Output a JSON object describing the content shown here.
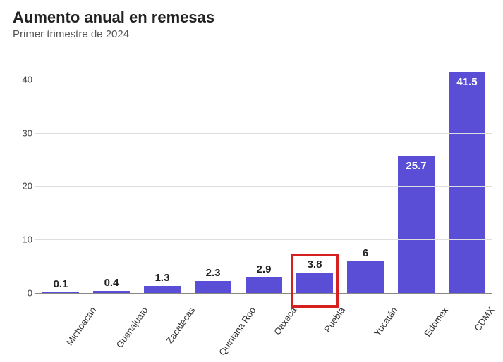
{
  "title": "Aumento anual en remesas",
  "subtitle": "Primer trimestre de 2024",
  "chart": {
    "type": "bar",
    "categories": [
      "Michoacán",
      "Guanajuato",
      "Zacatecas",
      "Quintana Roo",
      "Oaxaca",
      "Puebla",
      "Yucatán",
      "Edomex",
      "CDMX"
    ],
    "values": [
      0.1,
      0.4,
      1.3,
      2.3,
      2.9,
      3.8,
      6,
      25.7,
      41.5
    ],
    "value_labels": [
      "0.1",
      "0.4",
      "1.3",
      "2.3",
      "2.9",
      "3.8",
      "6",
      "25.7",
      "41.5"
    ],
    "label_inside": [
      false,
      false,
      false,
      false,
      false,
      false,
      false,
      true,
      true
    ],
    "bar_color": "#5b4ed6",
    "ylim": [
      0,
      45
    ],
    "yticks": [
      0,
      10,
      20,
      30,
      40
    ],
    "grid_color": "#dddddd",
    "axis_color": "#888888",
    "background_color": "#ffffff",
    "title_fontsize": 22,
    "subtitle_fontsize": 15,
    "tick_fontsize": 13,
    "value_label_fontsize": 15,
    "bar_width": 0.72,
    "highlight": {
      "category": "Puebla",
      "color": "#d61f1f",
      "border_width": 4
    }
  }
}
